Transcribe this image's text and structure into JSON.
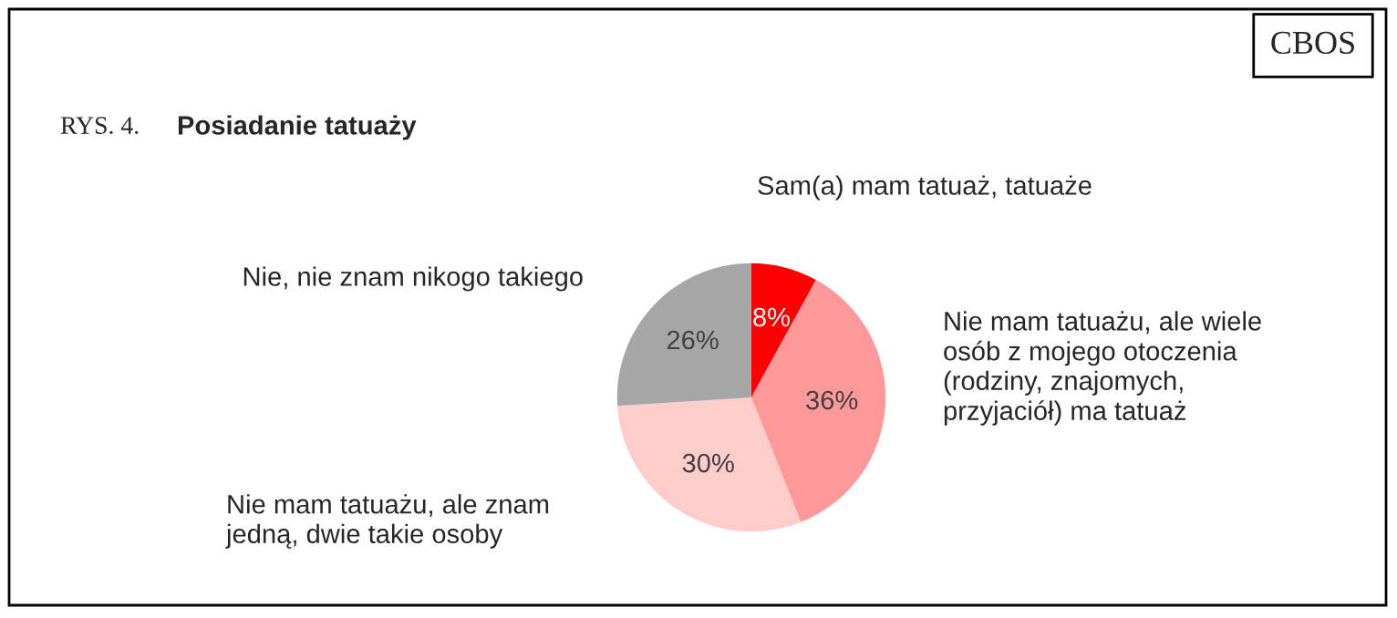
{
  "chart_data": {
    "type": "pie",
    "title": "Posiadanie tatuaży",
    "categories": [
      "Sam(a) mam tatuaż, tatuaże",
      "Nie mam tatuażu, ale wiele\nosób z mojego otoczenia\n(rodziny, znajomych,\nprzyjaciół) ma tatuaż",
      "Nie mam tatuażu, ale znam\njedną, dwie takie osoby",
      "Nie, nie znam nikogo takiego"
    ],
    "values": [
      8,
      36,
      30,
      26
    ],
    "value_labels": [
      "8%",
      "36%",
      "30%",
      "26%"
    ],
    "colors": [
      "#ff0000",
      "#ff9999",
      "#ffcccc",
      "#a6a6a6"
    ],
    "annotations": [
      "CBOS",
      "RYS. 4."
    ]
  }
}
